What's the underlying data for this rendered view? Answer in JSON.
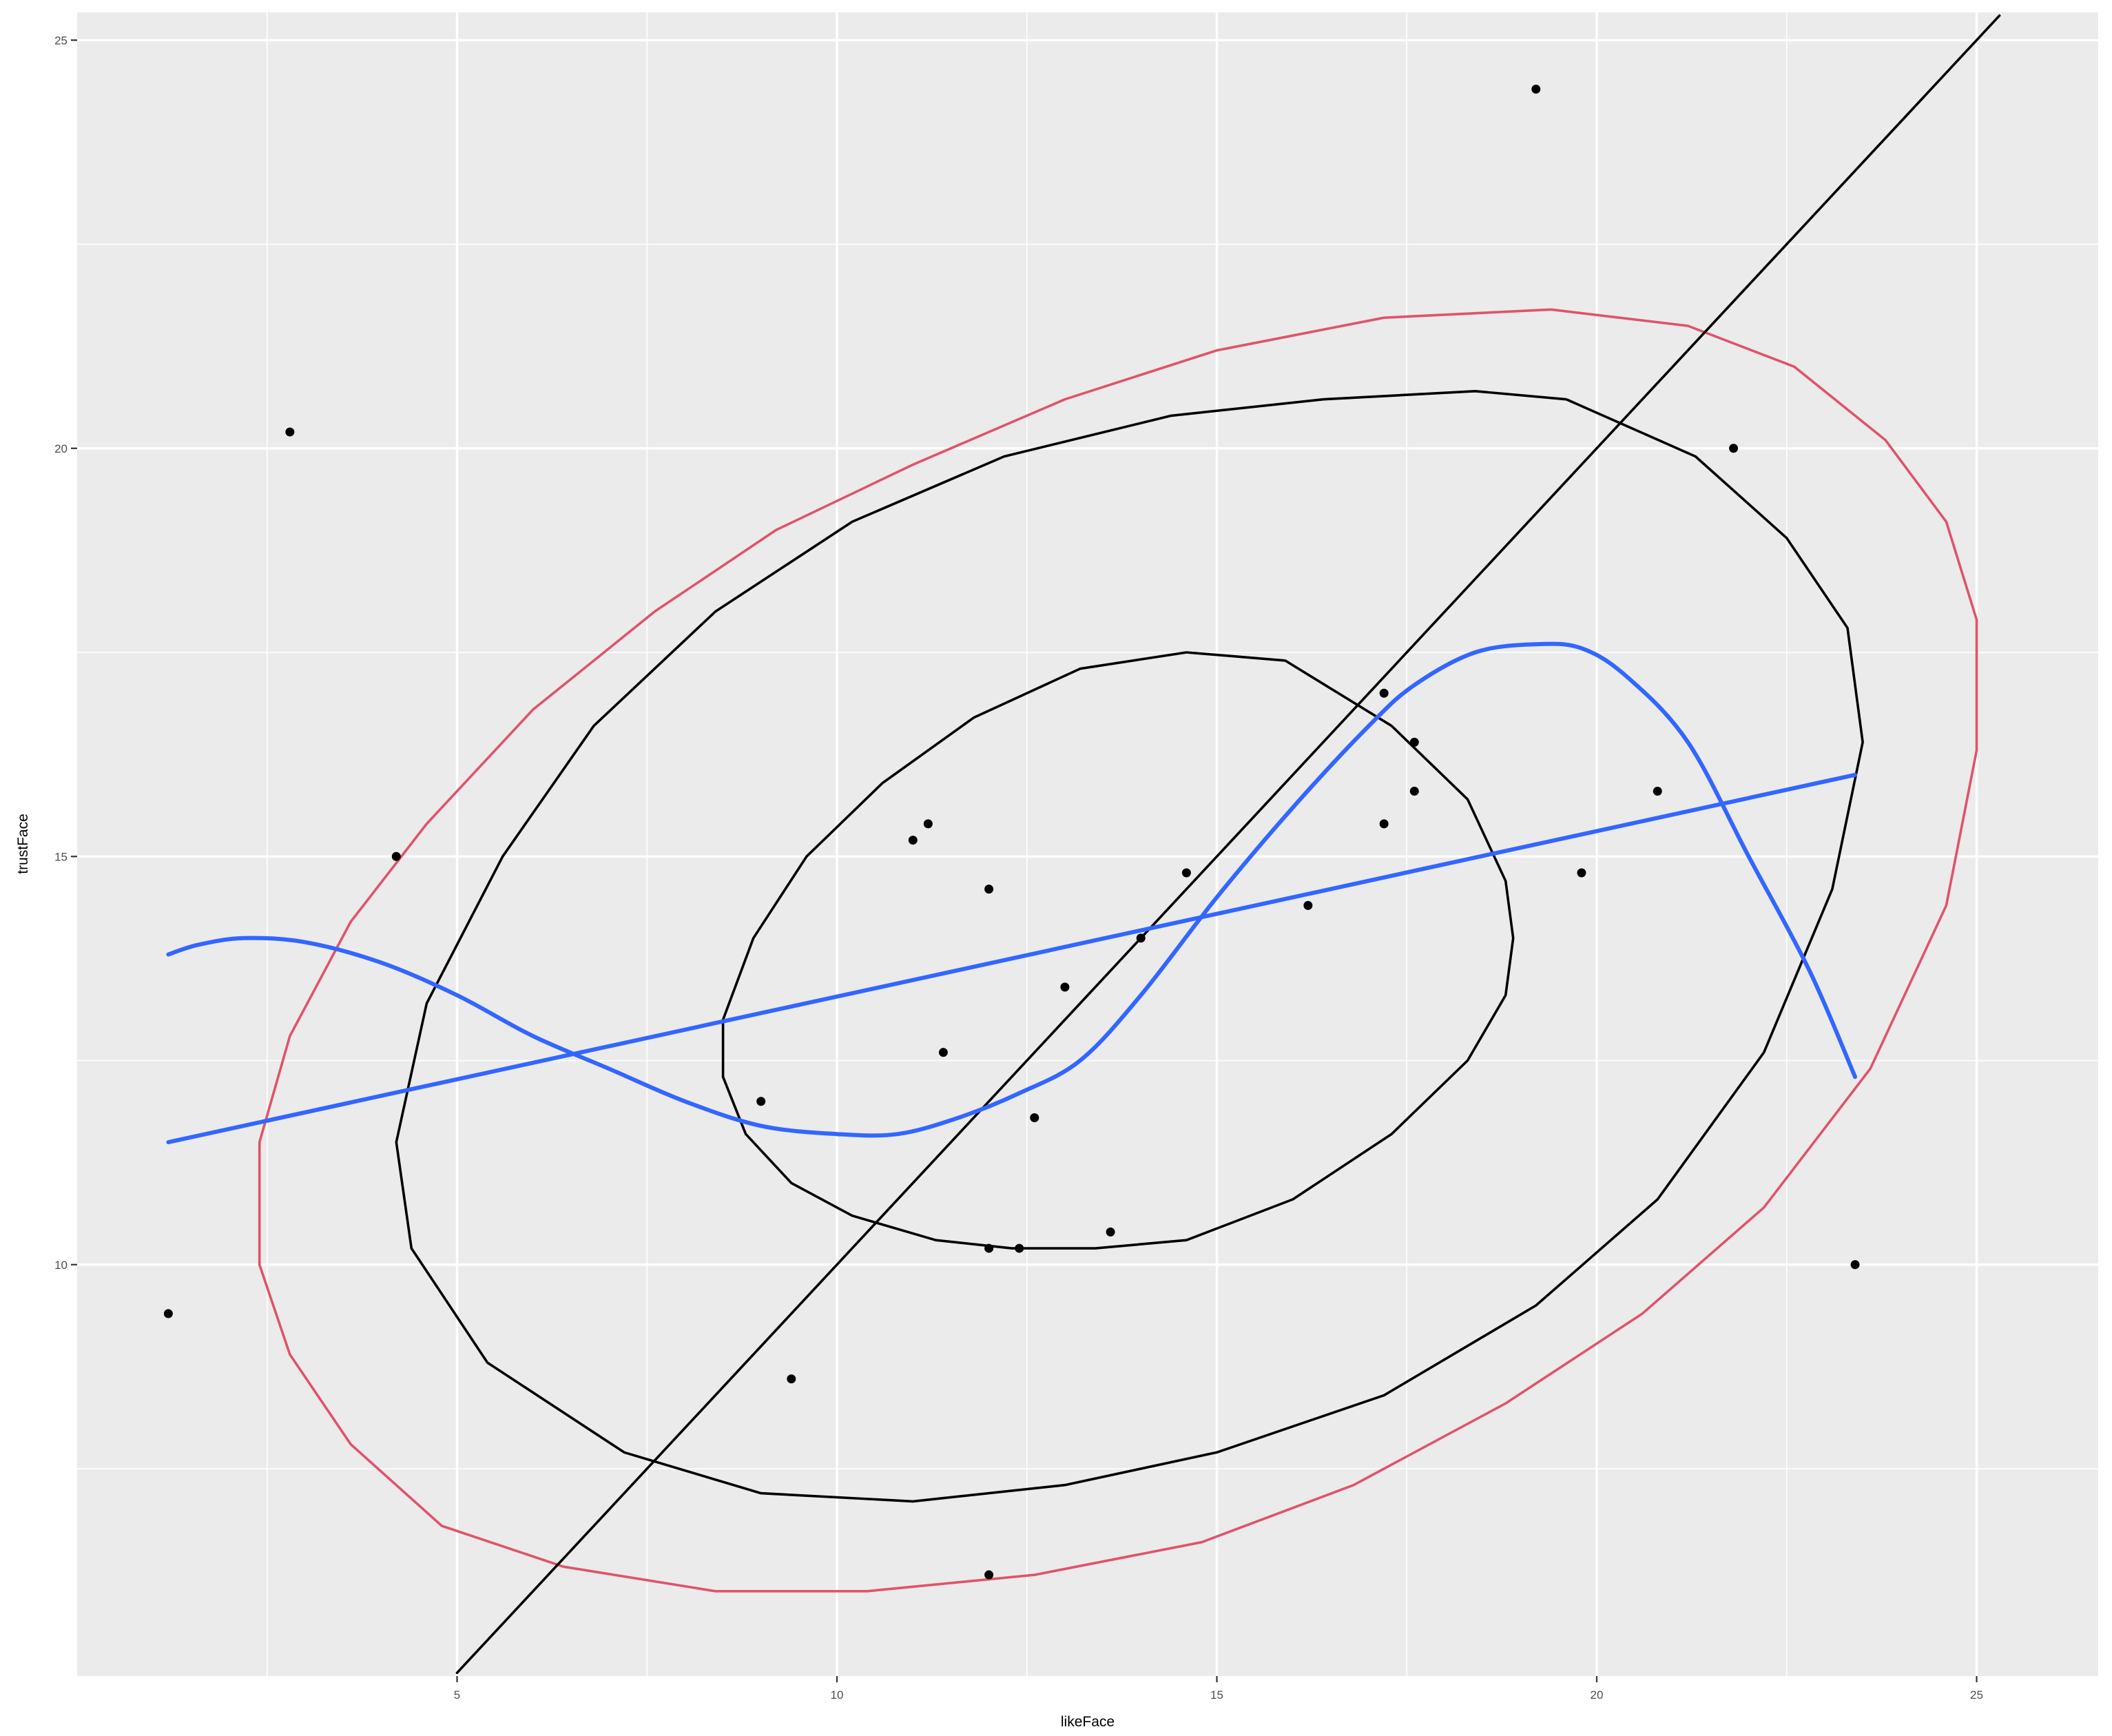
{
  "chart_data": {
    "type": "scatter",
    "title": "",
    "xlabel": "likeFace",
    "ylabel": "trustFace",
    "xlim": [
      0.0,
      26.6
    ],
    "ylim": [
      4.96,
      25.34
    ],
    "x_ticks": [
      5,
      10,
      15,
      20,
      25
    ],
    "y_ticks": [
      10,
      15,
      20,
      25
    ],
    "x_tick_labels": [
      "5",
      "10",
      "15",
      "20",
      "25"
    ],
    "y_tick_labels": [
      "10",
      "15",
      "20",
      "25"
    ],
    "grid": true,
    "legend": "none",
    "colors": {
      "panel": "#ebebeb",
      "grid": "#ffffff",
      "points": "#000000",
      "ellipse_inner": "#000000",
      "ellipse_middle": "#000000",
      "ellipse_outer": "#df536b",
      "diagonal": "#000000",
      "smooth_fit": "#3366ff",
      "linear_fit": "#3366ff"
    },
    "points": [
      {
        "x": 1.2,
        "y": 9.4
      },
      {
        "x": 2.8,
        "y": 20.2
      },
      {
        "x": 4.2,
        "y": 15.0
      },
      {
        "x": 9.0,
        "y": 12.0
      },
      {
        "x": 9.4,
        "y": 8.6
      },
      {
        "x": 11.0,
        "y": 15.2
      },
      {
        "x": 11.2,
        "y": 15.4
      },
      {
        "x": 11.4,
        "y": 12.6
      },
      {
        "x": 12.0,
        "y": 14.6
      },
      {
        "x": 12.0,
        "y": 10.2
      },
      {
        "x": 12.0,
        "y": 6.2
      },
      {
        "x": 12.4,
        "y": 10.2
      },
      {
        "x": 12.6,
        "y": 11.8
      },
      {
        "x": 13.0,
        "y": 13.4
      },
      {
        "x": 13.6,
        "y": 10.4
      },
      {
        "x": 14.0,
        "y": 14.0
      },
      {
        "x": 14.6,
        "y": 14.8
      },
      {
        "x": 16.2,
        "y": 14.4
      },
      {
        "x": 17.2,
        "y": 17.0
      },
      {
        "x": 17.2,
        "y": 15.4
      },
      {
        "x": 17.6,
        "y": 16.4
      },
      {
        "x": 17.6,
        "y": 15.8
      },
      {
        "x": 19.2,
        "y": 24.4
      },
      {
        "x": 19.8,
        "y": 14.8
      },
      {
        "x": 20.8,
        "y": 15.8
      },
      {
        "x": 21.8,
        "y": 20.0
      },
      {
        "x": 23.4,
        "y": 10.0
      }
    ],
    "ellipses": [
      {
        "name": "",
        "color_key": "ellipse_inner",
        "points": [
          [
            17.3,
            16.6
          ],
          [
            18.3,
            15.7
          ],
          [
            18.8,
            14.7
          ],
          [
            18.9,
            14.0
          ],
          [
            18.8,
            13.3
          ],
          [
            18.3,
            12.5
          ],
          [
            17.3,
            11.6
          ],
          [
            16.0,
            10.8
          ],
          [
            14.6,
            10.3
          ],
          [
            13.4,
            10.2
          ],
          [
            12.3,
            10.2
          ],
          [
            11.3,
            10.3
          ],
          [
            10.2,
            10.6
          ],
          [
            9.4,
            11.0
          ],
          [
            8.8,
            11.6
          ],
          [
            8.5,
            12.3
          ],
          [
            8.5,
            13.0
          ],
          [
            8.9,
            14.0
          ],
          [
            9.6,
            15.0
          ],
          [
            10.6,
            15.9
          ],
          [
            11.8,
            16.7
          ],
          [
            13.2,
            17.3
          ],
          [
            14.6,
            17.5
          ],
          [
            15.9,
            17.4
          ],
          [
            17.3,
            16.6
          ]
        ]
      },
      {
        "name": "",
        "color_key": "ellipse_middle",
        "points": [
          [
            19.6,
            20.6
          ],
          [
            21.3,
            19.9
          ],
          [
            22.5,
            18.9
          ],
          [
            23.3,
            17.8
          ],
          [
            23.5,
            16.4
          ],
          [
            23.1,
            14.6
          ],
          [
            22.2,
            12.6
          ],
          [
            20.8,
            10.8
          ],
          [
            19.2,
            9.5
          ],
          [
            17.2,
            8.4
          ],
          [
            15.0,
            7.7
          ],
          [
            13.0,
            7.3
          ],
          [
            11.0,
            7.1
          ],
          [
            9.0,
            7.2
          ],
          [
            7.2,
            7.7
          ],
          [
            5.4,
            8.8
          ],
          [
            4.4,
            10.2
          ],
          [
            4.2,
            11.5
          ],
          [
            4.6,
            13.2
          ],
          [
            5.6,
            15.0
          ],
          [
            6.8,
            16.6
          ],
          [
            8.4,
            18.0
          ],
          [
            10.2,
            19.1
          ],
          [
            12.2,
            19.9
          ],
          [
            14.4,
            20.4
          ],
          [
            16.4,
            20.6
          ],
          [
            18.4,
            20.7
          ],
          [
            19.6,
            20.6
          ]
        ]
      },
      {
        "name": "",
        "color_key": "ellipse_outer",
        "points": [
          [
            19.4,
            21.7
          ],
          [
            21.2,
            21.5
          ],
          [
            22.6,
            21.0
          ],
          [
            23.8,
            20.1
          ],
          [
            24.6,
            19.1
          ],
          [
            25.0,
            17.9
          ],
          [
            25.0,
            16.3
          ],
          [
            24.6,
            14.4
          ],
          [
            23.6,
            12.4
          ],
          [
            22.2,
            10.7
          ],
          [
            20.6,
            9.4
          ],
          [
            18.8,
            8.3
          ],
          [
            16.8,
            7.3
          ],
          [
            14.8,
            6.6
          ],
          [
            12.6,
            6.2
          ],
          [
            10.4,
            6.0
          ],
          [
            8.4,
            6.0
          ],
          [
            6.4,
            6.3
          ],
          [
            4.8,
            6.8
          ],
          [
            3.6,
            7.8
          ],
          [
            2.8,
            8.9
          ],
          [
            2.4,
            10.0
          ],
          [
            2.4,
            11.5
          ],
          [
            2.8,
            12.8
          ],
          [
            3.6,
            14.2
          ],
          [
            4.6,
            15.4
          ],
          [
            6.0,
            16.8
          ],
          [
            7.6,
            18.0
          ],
          [
            9.2,
            19.0
          ],
          [
            11.0,
            19.8
          ],
          [
            13.0,
            20.6
          ],
          [
            15.0,
            21.2
          ],
          [
            17.2,
            21.6
          ],
          [
            19.4,
            21.7
          ]
        ]
      }
    ],
    "lines": [
      {
        "name": "",
        "color_key": "diagonal",
        "x": [
          5.0,
          25.3
        ],
        "y": [
          5.0,
          25.3
        ]
      },
      {
        "name": "",
        "color_key": "linear_fit",
        "x": [
          1.2,
          23.4
        ],
        "y": [
          11.5,
          16.0
        ]
      },
      {
        "name": "",
        "color_key": "smooth_fit",
        "x": [
          1.2,
          1.6,
          2.2,
          3.0,
          4.0,
          5.0,
          6.0,
          7.0,
          8.0,
          9.0,
          10.0,
          10.8,
          11.6,
          12.4,
          13.2,
          14.0,
          15.0,
          16.0,
          17.0,
          17.6,
          18.4,
          19.2,
          19.8,
          20.4,
          21.2,
          22.0,
          22.8,
          23.4
        ],
        "y": [
          13.8,
          13.92,
          14.0,
          13.95,
          13.7,
          13.3,
          12.8,
          12.4,
          12.0,
          11.7,
          11.6,
          11.6,
          11.8,
          12.1,
          12.5,
          13.3,
          14.5,
          15.6,
          16.6,
          17.1,
          17.5,
          17.6,
          17.55,
          17.2,
          16.4,
          15.0,
          13.6,
          12.3
        ]
      }
    ]
  }
}
